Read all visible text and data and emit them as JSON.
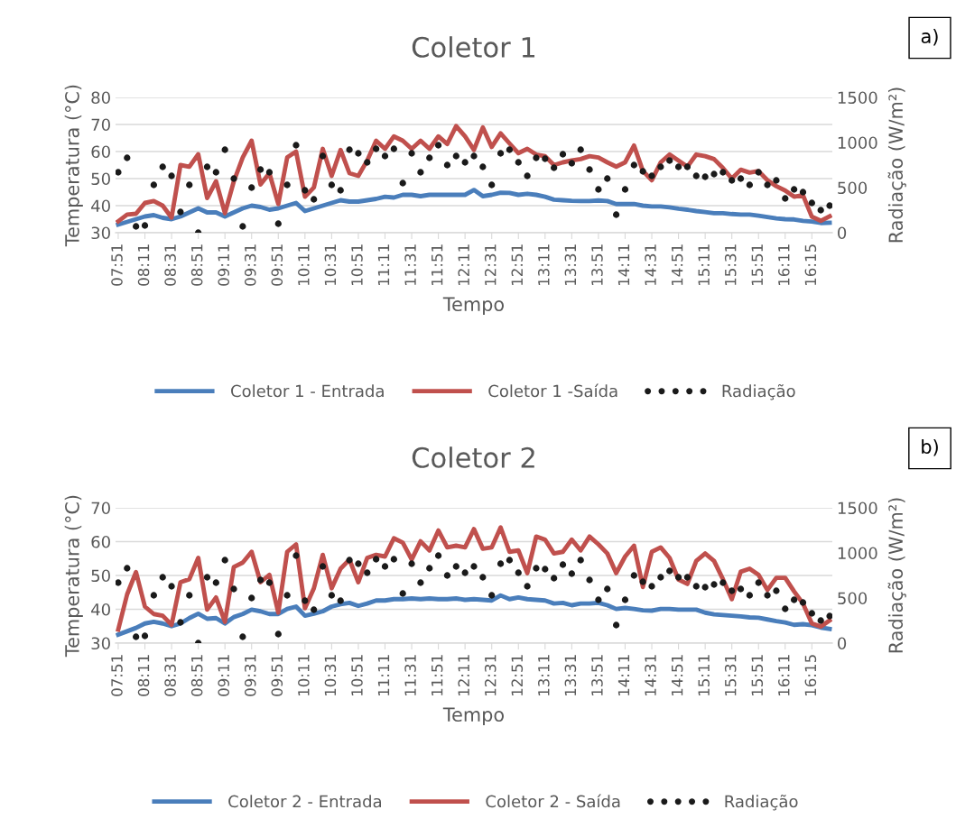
{
  "chart_data": [
    {
      "type": "line",
      "title": "Coletor 1",
      "xlabel": "Tempo",
      "ylabel": "Temperatura (°C)",
      "y2label": "Radiação (W/m²)",
      "annotations": [
        "a)"
      ],
      "categories": [
        "07:51",
        null,
        null,
        "08:11",
        null,
        null,
        "08:31",
        null,
        null,
        "08:51",
        null,
        null,
        "09:11",
        null,
        null,
        "09:31",
        null,
        null,
        "09:51",
        null,
        null,
        "10:11",
        null,
        null,
        "10:31",
        null,
        null,
        "10:51",
        null,
        null,
        "11:11",
        null,
        null,
        "11:31",
        null,
        null,
        "11:51",
        null,
        null,
        "12:11",
        null,
        null,
        "12:31",
        null,
        null,
        "12:51",
        null,
        null,
        "13:11",
        null,
        null,
        "13:31",
        null,
        null,
        "13:51",
        null,
        null,
        "14:11",
        null,
        null,
        "14:31",
        null,
        null,
        "14:51",
        null,
        null,
        "15:11",
        null,
        null,
        "15:31",
        null,
        null,
        "15:51",
        null,
        null,
        "16:11",
        null,
        null,
        "16:15",
        null,
        null
      ],
      "ylim": [
        30,
        80
      ],
      "yticks": [
        30,
        40,
        50,
        60,
        70,
        80
      ],
      "y2lim": [
        0,
        1500
      ],
      "y2ticks": [
        0,
        500,
        1000,
        1500
      ],
      "grid": "y",
      "legend": "bottom",
      "series": [
        {
          "name": "Coletor 1 - Entrada",
          "color": "#4a7ebb",
          "values": [
            33,
            34,
            35,
            36,
            36.5,
            35.5,
            35,
            36,
            37.5,
            39,
            37.5,
            37.5,
            36,
            37.5,
            39,
            40,
            39.5,
            38.5,
            39,
            40,
            41,
            38,
            39,
            40,
            41,
            42,
            41.5,
            41.5,
            42,
            42.5,
            43.3,
            43,
            44,
            44,
            43.5,
            44,
            44,
            44,
            44,
            44,
            45.8,
            43.5,
            44,
            44.8,
            44.7,
            44,
            44.4,
            44,
            43.3,
            42.2,
            42,
            41.8,
            41.7,
            41.7,
            41.9,
            41.7,
            40.6,
            40.6,
            40.6,
            40,
            39.7,
            39.7,
            39.4,
            38.9,
            38.5,
            38,
            37.6,
            37.2,
            37.2,
            36.9,
            36.7,
            36.7,
            36.3,
            35.8,
            35.3,
            35,
            34.9,
            34.4,
            34.1,
            33.6,
            33.7
          ]
        },
        {
          "name": "Coletor 1 -Saída",
          "color": "#c0504d",
          "values": [
            34.2,
            36.7,
            37,
            41,
            41.7,
            40,
            35.6,
            55,
            54.4,
            59,
            42.8,
            49,
            37.2,
            49,
            57.8,
            64,
            47.8,
            52,
            40.6,
            57.8,
            60,
            43.3,
            46.7,
            61,
            51,
            60.6,
            52,
            51,
            56.7,
            64,
            61,
            65.6,
            64,
            61,
            64,
            61,
            65.6,
            62.8,
            69.4,
            65.6,
            60.6,
            68.9,
            61.7,
            66.7,
            63,
            59.4,
            61,
            58.9,
            58.3,
            55,
            56,
            56.7,
            57.2,
            58.3,
            57.8,
            56,
            54.4,
            56,
            62.2,
            52.8,
            49.4,
            56,
            58.9,
            56.7,
            54.4,
            58.9,
            58.3,
            57.2,
            53.9,
            50,
            53.3,
            52.2,
            52.8,
            49.4,
            47.2,
            45.6,
            43.3,
            43.9,
            35.9,
            34.4,
            36.1
          ]
        },
        {
          "name": "Radiação",
          "type": "scatter",
          "axis": "y2",
          "marker": "circle",
          "color": "#1a1a1a",
          "values": [
            670,
            830,
            70,
            80,
            530,
            730,
            630,
            230,
            530,
            0,
            730,
            670,
            920,
            600,
            70,
            500,
            700,
            670,
            100,
            530,
            970,
            470,
            370,
            850,
            530,
            470,
            920,
            880,
            780,
            930,
            850,
            930,
            550,
            880,
            670,
            830,
            970,
            750,
            850,
            780,
            850,
            730,
            530,
            880,
            920,
            780,
            630,
            830,
            820,
            720,
            870,
            770,
            920,
            700,
            480,
            600,
            200,
            480,
            750,
            680,
            630,
            730,
            800,
            730,
            730,
            630,
            620,
            650,
            670,
            580,
            600,
            530,
            670,
            530,
            580,
            380,
            480,
            450,
            330,
            250,
            300
          ]
        }
      ]
    },
    {
      "type": "line",
      "title": "Coletor 2",
      "xlabel": "Tempo",
      "ylabel": "Temperatura (°C)",
      "y2label": "Radiação (W/m²)",
      "annotations": [
        "b)"
      ],
      "categories": [
        "07:51",
        null,
        null,
        "08:11",
        null,
        null,
        "08:31",
        null,
        null,
        "08:51",
        null,
        null,
        "09:11",
        null,
        null,
        "09:31",
        null,
        null,
        "09:51",
        null,
        null,
        "10:11",
        null,
        null,
        "10:31",
        null,
        null,
        "10:51",
        null,
        null,
        "11:11",
        null,
        null,
        "11:31",
        null,
        null,
        "11:51",
        null,
        null,
        "12:11",
        null,
        null,
        "12:31",
        null,
        null,
        "12:51",
        null,
        null,
        "13:11",
        null,
        null,
        "13:31",
        null,
        null,
        "13:51",
        null,
        null,
        "14:11",
        null,
        null,
        "14:31",
        null,
        null,
        "14:51",
        null,
        null,
        "15:11",
        null,
        null,
        "15:31",
        null,
        null,
        "15:51",
        null,
        null,
        "16:11",
        null,
        null,
        "16:15",
        null,
        null
      ],
      "ylim": [
        30,
        70
      ],
      "yticks": [
        30,
        40,
        50,
        60,
        70
      ],
      "y2lim": [
        0,
        1500
      ],
      "y2ticks": [
        0,
        500,
        1000,
        1500
      ],
      "grid": "y",
      "legend": "bottom",
      "series": [
        {
          "name": "Coletor 2 - Entrada",
          "color": "#4a7ebb",
          "values": [
            32.5,
            33.5,
            34.5,
            35.8,
            36.3,
            35.8,
            35,
            35.8,
            37.4,
            38.7,
            37.2,
            37.4,
            35.8,
            37.7,
            38.6,
            39.9,
            39.4,
            38.6,
            38.6,
            40.1,
            40.8,
            38.1,
            38.7,
            39.4,
            40.8,
            41.5,
            41.9,
            41,
            41.7,
            42.6,
            42.6,
            43,
            43,
            43.2,
            43,
            43.2,
            43,
            43,
            43.2,
            42.8,
            43,
            42.8,
            42.6,
            44.1,
            43,
            43.5,
            43,
            42.8,
            42.6,
            41.7,
            41.9,
            41.2,
            41.7,
            41.7,
            41.9,
            41.2,
            40.1,
            40.4,
            40.1,
            39.7,
            39.6,
            40.1,
            40.1,
            39.9,
            39.9,
            39.9,
            39,
            38.5,
            38.3,
            38.1,
            37.9,
            37.6,
            37.5,
            37,
            36.5,
            36.1,
            35.4,
            35.6,
            35.3,
            34.6,
            34.2
          ]
        },
        {
          "name": "Coletor 2 - Saída",
          "color": "#c0504d",
          "values": [
            34,
            44.4,
            51,
            40.8,
            38.6,
            38.1,
            35.4,
            48,
            48.9,
            55.2,
            39.9,
            43.5,
            36.3,
            52.5,
            53.8,
            57,
            48,
            50.2,
            39,
            57,
            59.2,
            40.3,
            46.2,
            56.1,
            46.2,
            52,
            54.7,
            48,
            55.2,
            56.1,
            55.6,
            61,
            59.7,
            54.7,
            60.1,
            57.4,
            63.3,
            58.3,
            58.8,
            58.3,
            63.7,
            57.9,
            58.3,
            64.2,
            57,
            57.4,
            50.7,
            61.5,
            60.6,
            56.5,
            57,
            60.6,
            57.4,
            61.5,
            59.2,
            56.5,
            50.7,
            55.6,
            58.8,
            46.6,
            57,
            58.3,
            55.2,
            48.8,
            47.5,
            54.3,
            56.5,
            54.3,
            48.9,
            43,
            51.1,
            52,
            50.2,
            45.7,
            49.3,
            49.3,
            45.3,
            41.7,
            35.8,
            34.9,
            36.7
          ]
        },
        {
          "name": "Radiação",
          "type": "scatter",
          "axis": "y2",
          "marker": "circle",
          "color": "#1a1a1a",
          "values": [
            670,
            830,
            70,
            80,
            530,
            730,
            630,
            230,
            530,
            0,
            730,
            670,
            920,
            600,
            70,
            500,
            700,
            670,
            100,
            530,
            970,
            470,
            370,
            850,
            530,
            470,
            920,
            880,
            780,
            930,
            850,
            930,
            550,
            880,
            670,
            830,
            970,
            750,
            850,
            780,
            850,
            730,
            530,
            880,
            920,
            780,
            630,
            830,
            820,
            720,
            870,
            770,
            920,
            700,
            480,
            600,
            200,
            480,
            750,
            680,
            630,
            730,
            800,
            730,
            730,
            630,
            620,
            650,
            670,
            580,
            600,
            530,
            670,
            530,
            580,
            380,
            480,
            450,
            330,
            250,
            300
          ]
        }
      ]
    }
  ]
}
